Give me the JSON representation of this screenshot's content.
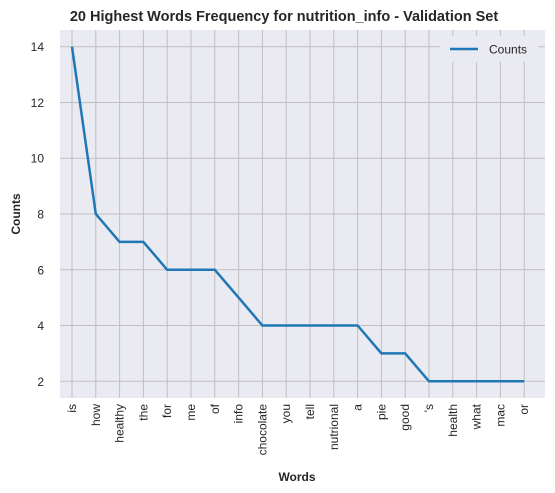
{
  "chart_data": {
    "type": "line",
    "title": "20 Highest Words Frequency for nutrition_info - Validation Set",
    "xlabel": "Words",
    "ylabel": "Counts",
    "categories": [
      "is",
      "how",
      "healthy",
      "the",
      "for",
      "me",
      "of",
      "info",
      "chocolate",
      "you",
      "tell",
      "nutrional",
      "a",
      "pie",
      "good",
      "'s",
      "health",
      "what",
      "mac",
      "or"
    ],
    "series": [
      {
        "name": "Counts",
        "values": [
          14,
          8,
          7,
          7,
          6,
          6,
          6,
          5,
          4,
          4,
          4,
          4,
          4,
          3,
          3,
          2,
          2,
          2,
          2,
          2
        ],
        "color": "#1f77b4"
      }
    ],
    "y_ticks": [
      2,
      4,
      6,
      8,
      10,
      12,
      14
    ],
    "ylim": [
      1.4,
      14.6
    ],
    "grid": true,
    "legend_position": "top-right",
    "background_color": "#eaeaf2",
    "grid_color": "#c0c0c0"
  }
}
